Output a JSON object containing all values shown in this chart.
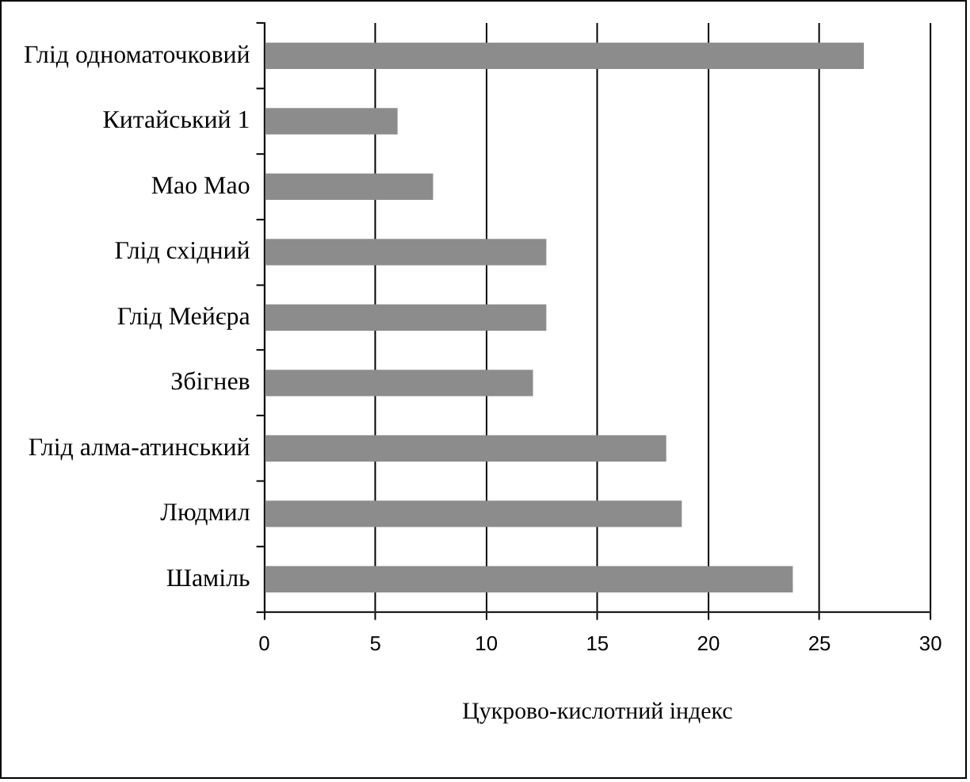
{
  "chart_data": {
    "type": "bar",
    "orientation": "horizontal",
    "xlabel": "Цукрово-кислотний індекс",
    "categories": [
      "Глід одноматочковий",
      "Китайський 1",
      "Мао Мао",
      "Глід східний",
      "Глід Мейєра",
      "Збігнев",
      "Глід алма-атинський",
      "Людмил",
      "Шаміль"
    ],
    "values": [
      27.0,
      6.0,
      7.6,
      12.7,
      12.7,
      12.1,
      18.1,
      18.8,
      23.8
    ],
    "color": "#8c8c8c",
    "xlim": [
      0,
      30
    ],
    "xticks": [
      0,
      5,
      10,
      15,
      20,
      25,
      30
    ],
    "grid": "x",
    "legend": false
  }
}
